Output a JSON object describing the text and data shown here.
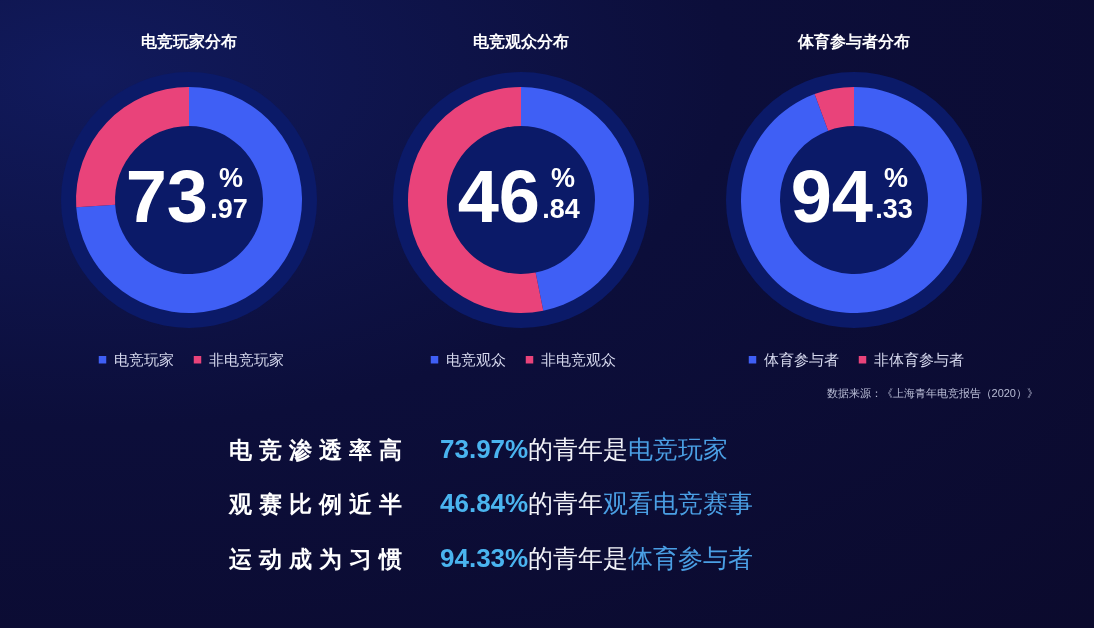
{
  "chart_data": [
    {
      "type": "donut",
      "title": "电竞玩家分布",
      "categories": [
        "电竞玩家",
        "非电竞玩家"
      ],
      "values": [
        73.97,
        26.03
      ],
      "colors": [
        "#3f5ff5",
        "#e9437a"
      ],
      "annotations": [
        "73.97%"
      ],
      "legend": "bottom"
    },
    {
      "type": "donut",
      "title": "电竞观众分布",
      "categories": [
        "电竞观众",
        "非电竞观众"
      ],
      "values": [
        46.84,
        53.16
      ],
      "colors": [
        "#3f5ff5",
        "#e9437a"
      ],
      "annotations": [
        "46.84%"
      ],
      "legend": "bottom"
    },
    {
      "type": "donut",
      "title": "体育参与者分布",
      "categories": [
        "体育参与者",
        "非体育参与者"
      ],
      "values": [
        94.33,
        5.67
      ],
      "colors": [
        "#3f5ff5",
        "#e9437a"
      ],
      "annotations": [
        "94.33%"
      ],
      "legend": "bottom"
    },
    {
      "type": "other",
      "annotations": [
        "数据来源：《上海青年电竞报告（2020）》",
        "电竞渗透率高",
        "73.97%",
        "的青年是",
        "电竞玩家",
        "观赛比例近半",
        "46.84%",
        "的青年",
        "观看电竞赛事",
        "运动成为习惯",
        "94.33%",
        "的青年是",
        "体育参与者"
      ]
    }
  ]
}
